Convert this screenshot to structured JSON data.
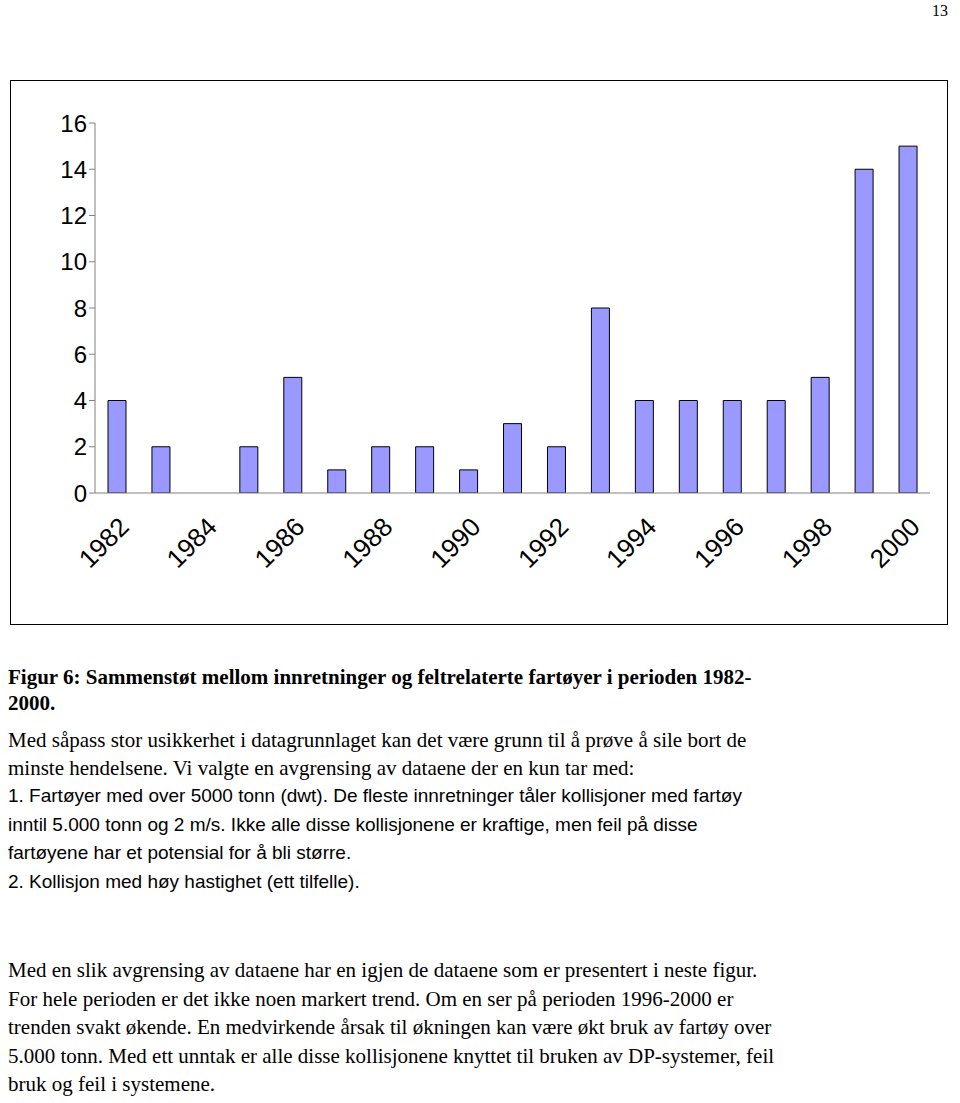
{
  "page_number": "13",
  "chart_data": {
    "type": "bar",
    "categories": [
      "1982",
      null,
      "1984",
      null,
      "1986",
      null,
      "1988",
      null,
      "1990",
      null,
      "1992",
      null,
      "1994",
      null,
      "1996",
      null,
      "1998",
      null,
      "2000"
    ],
    "values": [
      4,
      2,
      0,
      2,
      5,
      1,
      2,
      2,
      1,
      3,
      2,
      8,
      4,
      4,
      4,
      4,
      5,
      14,
      15
    ],
    "color": "#9999ff",
    "ylim": [
      0,
      16
    ],
    "yticks": [
      0,
      2,
      4,
      6,
      8,
      10,
      12,
      14,
      16
    ],
    "grid": false
  },
  "caption": [
    "Figur 6: Sammenstøt mellom innretninger og feltrelaterte fartøyer i perioden 1982-",
    "2000."
  ],
  "intro": [
    "Med såpass stor usikkerhet i datagrunnlaget kan det være grunn til å prøve å sile bort de",
    "minste hendelsene. Vi valgte en avgrensing av dataene der en kun tar med:"
  ],
  "list": [
    "1. Fartøyer med over 5000 tonn (dwt). De fleste innretninger tåler kollisjoner med fartøy",
    "inntil 5.000 tonn og 2 m/s. Ikke alle disse kollisjonene er kraftige, men feil på disse",
    "fartøyene har et potensial for å bli større.",
    "2. Kollisjon med høy hastighet (ett tilfelle)."
  ],
  "closing": [
    "Med en slik avgrensing av dataene har en igjen de dataene som er presentert i neste figur.",
    "For hele perioden er det ikke noen markert trend. Om en ser på perioden 1996-2000 er",
    "trenden svakt økende. En medvirkende årsak til økningen kan være økt bruk av fartøy over",
    "5.000 tonn. Med ett unntak er alle disse kollisjonene knyttet til bruken av DP-systemer, feil",
    "bruk og feil i systemene."
  ]
}
